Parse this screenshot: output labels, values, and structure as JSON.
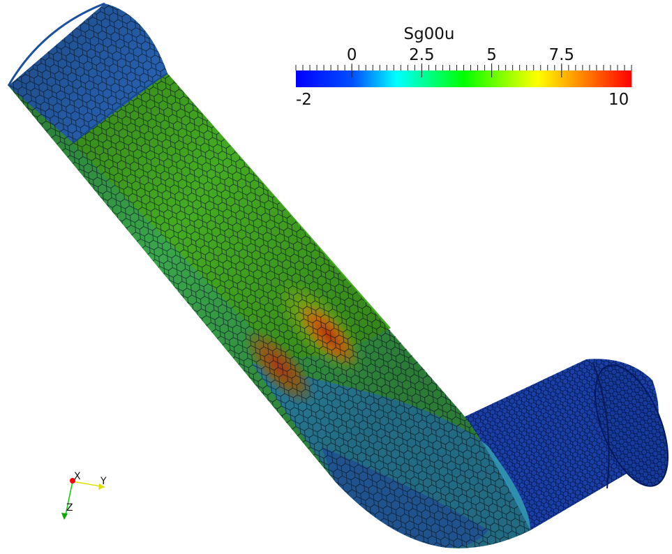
{
  "colorbar": {
    "title": "Sg00u",
    "min_label": "-2",
    "max_label": "10",
    "min": -2,
    "max": 10,
    "ticks": [
      {
        "value": 0,
        "label": "0"
      },
      {
        "value": 2.5,
        "label": "2.5"
      },
      {
        "value": 5,
        "label": "5"
      },
      {
        "value": 7.5,
        "label": "7.5"
      }
    ],
    "colormap": [
      "#0000ff",
      "#00ffff",
      "#00ff00",
      "#ffff00",
      "#ff0000"
    ]
  },
  "orientation_axes": {
    "x_label": "X",
    "y_label": "Y",
    "z_label": "Z",
    "x_color": "#ff0000",
    "y_color": "#ffff00",
    "z_color": "#00cc00"
  },
  "mesh": {
    "edge_color": "#001030",
    "field_colors": {
      "low": "#2d6fc9",
      "mid": "#3cb21e",
      "high": "#d23a10",
      "outlet": "#1a3fa6"
    }
  }
}
